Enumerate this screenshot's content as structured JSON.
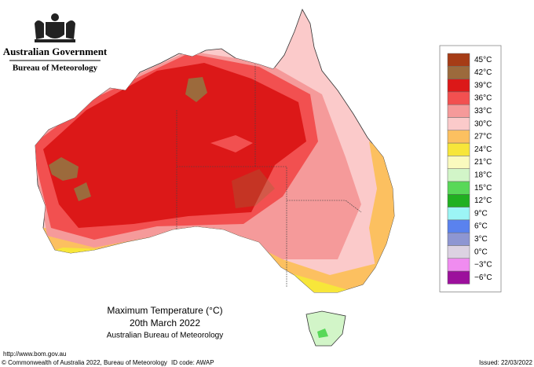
{
  "header": {
    "government": "Australian Government",
    "agency": "Bureau of Meteorology"
  },
  "map": {
    "title": "Maximum Temperature (°C)",
    "date": "20th March 2022",
    "source": "Australian Bureau of Meteorology"
  },
  "legend": {
    "items": [
      {
        "label": "45°C",
        "color": "#a63c16"
      },
      {
        "label": "42°C",
        "color": "#9c6a3c"
      },
      {
        "label": "39°C",
        "color": "#dc1818"
      },
      {
        "label": "36°C",
        "color": "#f25050"
      },
      {
        "label": "33°C",
        "color": "#f59a9a"
      },
      {
        "label": "30°C",
        "color": "#fbcaca"
      },
      {
        "label": "27°C",
        "color": "#fcc060"
      },
      {
        "label": "24°C",
        "color": "#f7e63a"
      },
      {
        "label": "21°C",
        "color": "#fafabe"
      },
      {
        "label": "18°C",
        "color": "#d2f5c8"
      },
      {
        "label": "15°C",
        "color": "#58d858"
      },
      {
        "label": "12°C",
        "color": "#20b020"
      },
      {
        "label": "9°C",
        "color": "#9cf5f5"
      },
      {
        "label": "6°C",
        "color": "#5a82ee"
      },
      {
        "label": "3°C",
        "color": "#8e96d2"
      },
      {
        "label": "0°C",
        "color": "#dcd2e2"
      },
      {
        "label": "−3°C",
        "color": "#f08cf0"
      },
      {
        "label": "−6°C",
        "color": "#9c109c"
      }
    ]
  },
  "footer": {
    "url": "http://www.bom.gov.au",
    "copyright": "© Commonwealth of Australia 2022, Bureau of Meteorology",
    "id_code": "ID code: AWAP",
    "issued": "Issued: 22/03/2022"
  }
}
